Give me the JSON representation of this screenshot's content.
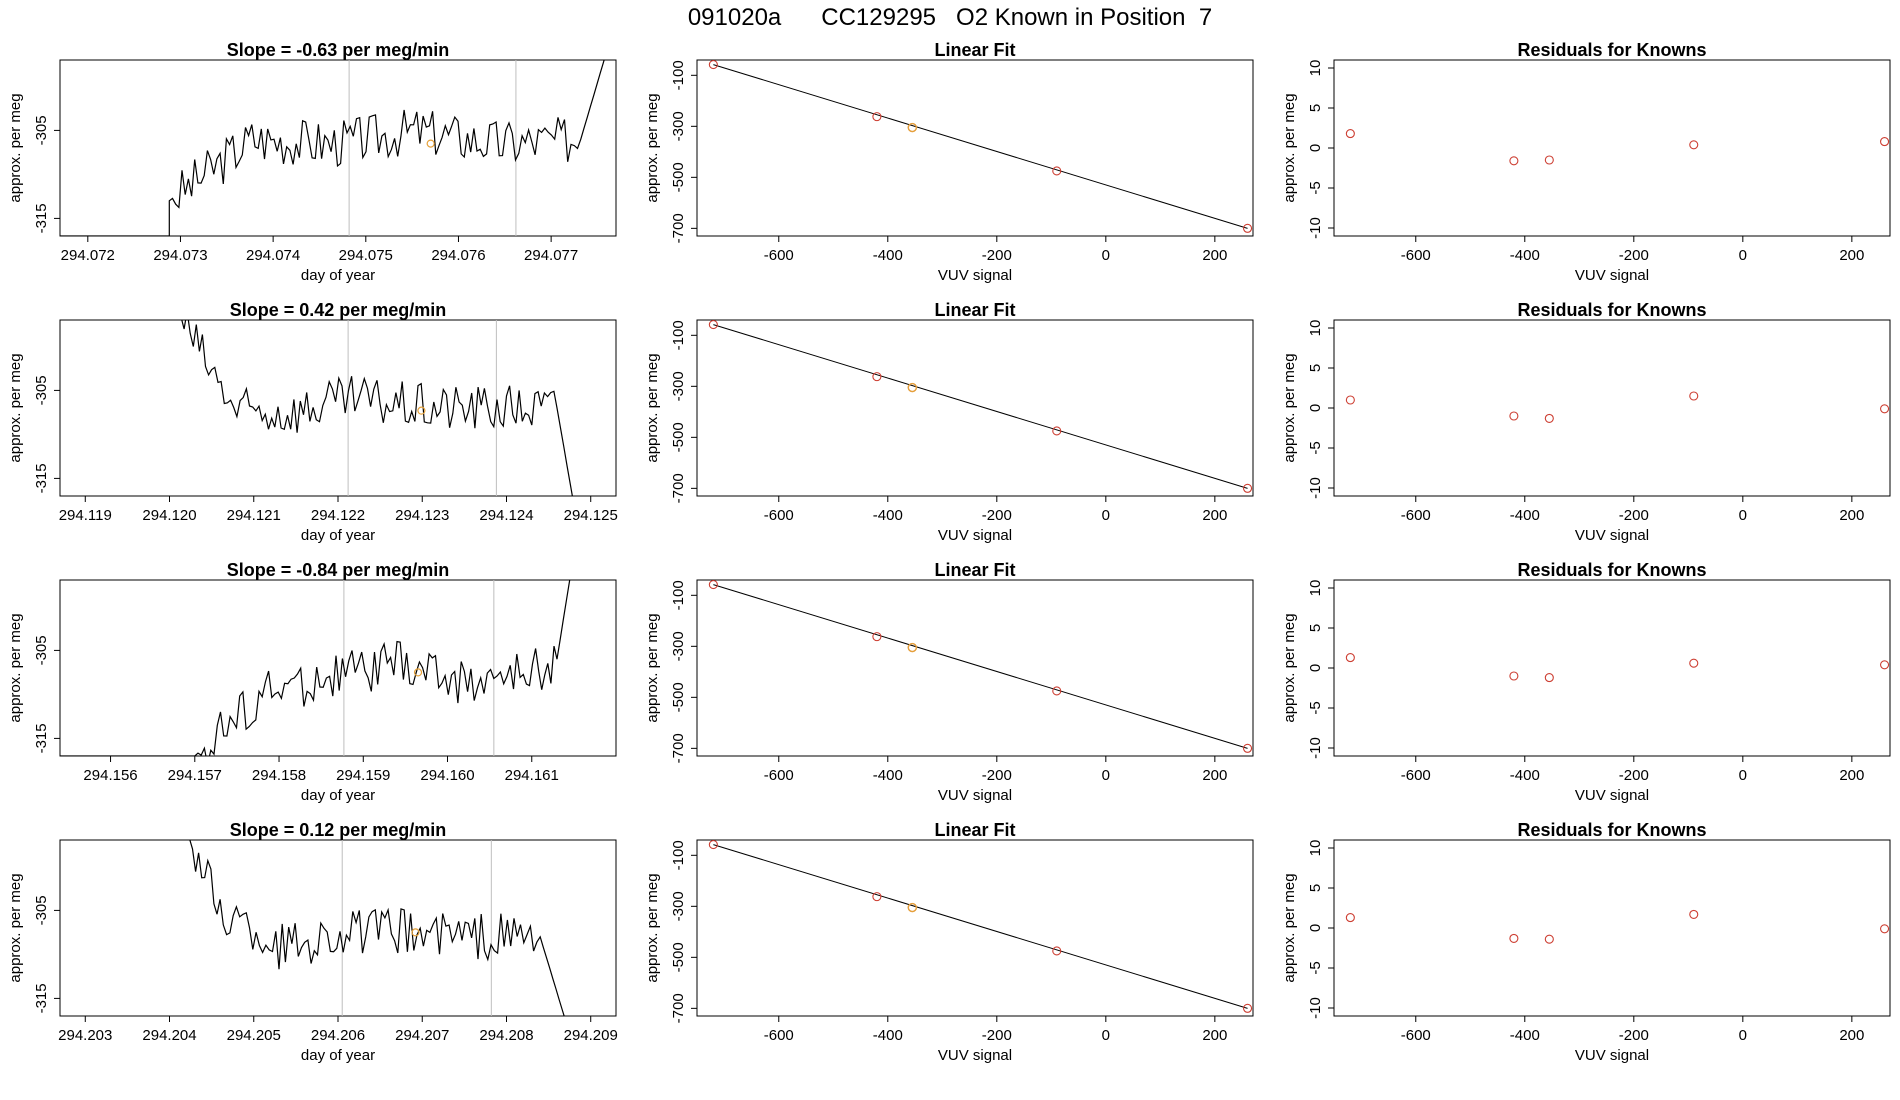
{
  "title": "091020a      CC129295   O2 Known in Position  7",
  "colors": {
    "trace": "#000000",
    "grid": "#bebebe",
    "point": "#cd3f33",
    "sample": "#e5a13a",
    "fit": "#000000"
  },
  "chart_data": [
    {
      "type": "line",
      "row": 0,
      "panel": "trace",
      "title": "Slope =  -0.63  per meg/min",
      "xlabel": "day of year",
      "ylabel": "approx. per meg",
      "xlim": [
        294.0717,
        294.0777
      ],
      "ylim": [
        -317,
        -297
      ],
      "xticks": [
        "294.072",
        "294.073",
        "294.074",
        "294.075",
        "294.076",
        "294.077"
      ],
      "yticks": [
        "-305",
        "-315"
      ],
      "ytick_values": [
        -305,
        -315
      ],
      "vlines": [
        294.07482,
        294.07662
      ],
      "highlight": {
        "x": 294.0757,
        "y": -306.5
      },
      "x": [
        294.07288,
        294.07377,
        294.07466,
        294.07555,
        294.07644,
        294.07732,
        294.0776
      ],
      "y": [
        -313,
        -306,
        -306.5,
        -305,
        -306.5,
        -306,
        -296
      ],
      "pre": {
        "x": [
          294.0717,
          294.07288
        ],
        "y": [
          -317,
          -317
        ]
      }
    },
    {
      "type": "scatter",
      "row": 0,
      "panel": "fit",
      "title": "Linear Fit",
      "xlabel": "VUV signal",
      "ylabel": "approx. per meg",
      "xlim": [
        -750,
        270
      ],
      "ylim": [
        -730,
        -40
      ],
      "xticks": [
        "-600",
        "-400",
        "-200",
        "0",
        "200"
      ],
      "xtick_values": [
        -600,
        -400,
        -200,
        0,
        200
      ],
      "yticks": [
        "-100",
        "-300",
        "-500",
        "-700"
      ],
      "ytick_values": [
        -100,
        -300,
        -500,
        -700
      ],
      "line": [
        [
          -720,
          -58
        ],
        [
          260,
          -700
        ]
      ],
      "points": {
        "x": [
          -720,
          -420,
          -355,
          -90,
          260
        ],
        "y": [
          -58,
          -262,
          -305,
          -475,
          -700
        ]
      },
      "sample": {
        "x": -355,
        "y": -305
      }
    },
    {
      "type": "scatter",
      "row": 0,
      "panel": "resid",
      "title": "Residuals for Knowns",
      "xlabel": "VUV signal",
      "ylabel": "approx. per meg",
      "xlim": [
        -750,
        270
      ],
      "ylim": [
        -11,
        11
      ],
      "xticks": [
        "-600",
        "-400",
        "-200",
        "0",
        "200"
      ],
      "xtick_values": [
        -600,
        -400,
        -200,
        0,
        200
      ],
      "yticks": [
        "10",
        "5",
        "0",
        "-5",
        "-10"
      ],
      "ytick_values": [
        10,
        5,
        0,
        -5,
        -10
      ],
      "points": {
        "x": [
          -720,
          -420,
          -355,
          -90,
          260
        ],
        "y": [
          1.8,
          -1.6,
          -1.5,
          0.4,
          0.8
        ]
      }
    },
    {
      "type": "line",
      "row": 1,
      "panel": "trace",
      "title": "Slope =  0.42  per meg/min",
      "xlabel": "day of year",
      "ylabel": "approx. per meg",
      "xlim": [
        294.1187,
        294.1253
      ],
      "ylim": [
        -317,
        -297
      ],
      "xticks": [
        "294.119",
        "294.120",
        "294.121",
        "294.122",
        "294.123",
        "294.124",
        "294.125"
      ],
      "yticks": [
        "-305",
        "-315"
      ],
      "ytick_values": [
        -305,
        -315
      ],
      "vlines": [
        294.12212,
        294.12388
      ],
      "highlight": {
        "x": 294.12299,
        "y": -307.3
      },
      "x": [
        294.1201,
        294.1205,
        294.1208,
        294.1214,
        294.1222,
        294.1231,
        294.124,
        294.1246,
        294.1248
      ],
      "y": [
        -296,
        -303,
        -307.5,
        -307.5,
        -306,
        -307,
        -307,
        -307,
        -318
      ],
      "pre": null
    },
    {
      "type": "scatter",
      "row": 1,
      "panel": "fit",
      "title": "Linear Fit",
      "xlabel": "VUV signal",
      "ylabel": "approx. per meg",
      "xlim": [
        -750,
        270
      ],
      "ylim": [
        -730,
        -40
      ],
      "xticks": [
        "-600",
        "-400",
        "-200",
        "0",
        "200"
      ],
      "xtick_values": [
        -600,
        -400,
        -200,
        0,
        200
      ],
      "yticks": [
        "-100",
        "-300",
        "-500",
        "-700"
      ],
      "ytick_values": [
        -100,
        -300,
        -500,
        -700
      ],
      "line": [
        [
          -720,
          -58
        ],
        [
          260,
          -700
        ]
      ],
      "points": {
        "x": [
          -720,
          -420,
          -355,
          -90,
          260
        ],
        "y": [
          -58,
          -262,
          -305,
          -475,
          -700
        ]
      },
      "sample": {
        "x": -355,
        "y": -305
      }
    },
    {
      "type": "scatter",
      "row": 1,
      "panel": "resid",
      "title": "Residuals for Knowns",
      "xlabel": "VUV signal",
      "ylabel": "approx. per meg",
      "xlim": [
        -750,
        270
      ],
      "ylim": [
        -11,
        11
      ],
      "xticks": [
        "-600",
        "-400",
        "-200",
        "0",
        "200"
      ],
      "xtick_values": [
        -600,
        -400,
        -200,
        0,
        200
      ],
      "yticks": [
        "10",
        "5",
        "0",
        "-5",
        "-10"
      ],
      "ytick_values": [
        10,
        5,
        0,
        -5,
        -10
      ],
      "points": {
        "x": [
          -720,
          -420,
          -355,
          -90,
          260
        ],
        "y": [
          1.0,
          -1.0,
          -1.3,
          1.5,
          -0.1
        ]
      }
    },
    {
      "type": "line",
      "row": 2,
      "panel": "trace",
      "title": "Slope =  -0.84  per meg/min",
      "xlabel": "day of year",
      "ylabel": "approx. per meg",
      "xlim": [
        294.1554,
        294.162
      ],
      "ylim": [
        -317,
        -297
      ],
      "xticks": [
        "294.156",
        "294.157",
        "294.158",
        "294.159",
        "294.160",
        "294.161"
      ],
      "yticks": [
        "-305",
        "-315"
      ],
      "ytick_values": [
        -305,
        -315
      ],
      "vlines": [
        294.15877,
        294.16055
      ],
      "highlight": {
        "x": 294.15965,
        "y": -307.5
      },
      "x": [
        294.157,
        294.1578,
        294.1586,
        294.1594,
        294.1602,
        294.1609,
        294.1613,
        294.16145
      ],
      "y": [
        -317,
        -310,
        -308,
        -306.5,
        -308.5,
        -308,
        -306,
        -297
      ],
      "pre": {
        "x": [
          294.1554,
          294.1569
        ],
        "y": [
          -317,
          -317
        ]
      }
    },
    {
      "type": "scatter",
      "row": 2,
      "panel": "fit",
      "title": "Linear Fit",
      "xlabel": "VUV signal",
      "ylabel": "approx. per meg",
      "xlim": [
        -750,
        270
      ],
      "ylim": [
        -730,
        -40
      ],
      "xticks": [
        "-600",
        "-400",
        "-200",
        "0",
        "200"
      ],
      "xtick_values": [
        -600,
        -400,
        -200,
        0,
        200
      ],
      "yticks": [
        "-100",
        "-300",
        "-500",
        "-700"
      ],
      "ytick_values": [
        -100,
        -300,
        -500,
        -700
      ],
      "line": [
        [
          -720,
          -58
        ],
        [
          260,
          -700
        ]
      ],
      "points": {
        "x": [
          -720,
          -420,
          -355,
          -90,
          260
        ],
        "y": [
          -58,
          -262,
          -305,
          -475,
          -700
        ]
      },
      "sample": {
        "x": -355,
        "y": -305
      }
    },
    {
      "type": "scatter",
      "row": 2,
      "panel": "resid",
      "title": "Residuals for Knowns",
      "xlabel": "VUV signal",
      "ylabel": "approx. per meg",
      "xlim": [
        -750,
        270
      ],
      "ylim": [
        -11,
        11
      ],
      "xticks": [
        "-600",
        "-400",
        "-200",
        "0",
        "200"
      ],
      "xtick_values": [
        -600,
        -400,
        -200,
        0,
        200
      ],
      "yticks": [
        "10",
        "5",
        "0",
        "-5",
        "-10"
      ],
      "ytick_values": [
        10,
        5,
        0,
        -5,
        -10
      ],
      "points": {
        "x": [
          -720,
          -420,
          -355,
          -90,
          260
        ],
        "y": [
          1.3,
          -1.0,
          -1.2,
          0.6,
          0.4
        ]
      }
    },
    {
      "type": "line",
      "row": 3,
      "panel": "trace",
      "title": "Slope =  0.12  per meg/min",
      "xlabel": "day of year",
      "ylabel": "approx. per meg",
      "xlim": [
        294.2027,
        294.2093
      ],
      "ylim": [
        -317,
        -297
      ],
      "xticks": [
        "294.203",
        "294.204",
        "294.205",
        "294.206",
        "294.207",
        "294.208",
        "294.209"
      ],
      "yticks": [
        "-305",
        "-315"
      ],
      "ytick_values": [
        -305,
        -315
      ],
      "vlines": [
        294.20605,
        294.20782
      ],
      "highlight": {
        "x": 294.20692,
        "y": -307.5
      },
      "x": [
        294.2042,
        294.2046,
        294.2053,
        294.2061,
        294.2069,
        294.2077,
        294.2084,
        294.2087
      ],
      "y": [
        -296,
        -305,
        -309,
        -307.5,
        -307.5,
        -308,
        -308,
        -317.5
      ],
      "pre": null
    },
    {
      "type": "scatter",
      "row": 3,
      "panel": "fit",
      "title": "Linear Fit",
      "xlabel": "VUV signal",
      "ylabel": "approx. per meg",
      "xlim": [
        -750,
        270
      ],
      "ylim": [
        -730,
        -40
      ],
      "xticks": [
        "-600",
        "-400",
        "-200",
        "0",
        "200"
      ],
      "xtick_values": [
        -600,
        -400,
        -200,
        0,
        200
      ],
      "yticks": [
        "-100",
        "-300",
        "-500",
        "-700"
      ],
      "ytick_values": [
        -100,
        -300,
        -500,
        -700
      ],
      "line": [
        [
          -720,
          -58
        ],
        [
          260,
          -700
        ]
      ],
      "points": {
        "x": [
          -720,
          -420,
          -355,
          -90,
          260
        ],
        "y": [
          -58,
          -262,
          -305,
          -475,
          -700
        ]
      },
      "sample": {
        "x": -355,
        "y": -305
      }
    },
    {
      "type": "scatter",
      "row": 3,
      "panel": "resid",
      "title": "Residuals for Knowns",
      "xlabel": "VUV signal",
      "ylabel": "approx. per meg",
      "xlim": [
        -750,
        270
      ],
      "ylim": [
        -11,
        11
      ],
      "xticks": [
        "-600",
        "-400",
        "-200",
        "0",
        "200"
      ],
      "xtick_values": [
        -600,
        -400,
        -200,
        0,
        200
      ],
      "yticks": [
        "10",
        "5",
        "0",
        "-5",
        "-10"
      ],
      "ytick_values": [
        10,
        5,
        0,
        -5,
        -10
      ],
      "points": {
        "x": [
          -720,
          -420,
          -355,
          -90,
          260
        ],
        "y": [
          1.3,
          -1.3,
          -1.4,
          1.7,
          -0.1
        ]
      }
    }
  ]
}
